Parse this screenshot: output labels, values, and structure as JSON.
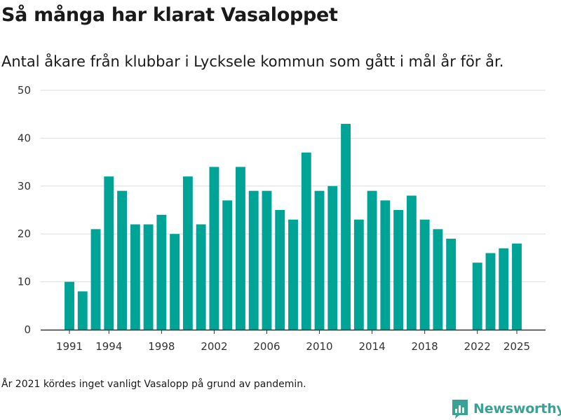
{
  "title": "Så många har klarat Vasaloppet",
  "subtitle": "Antal åkare från klubbar i Lycksele kommun som gått i mål år för år.",
  "footnote": "År 2021 kördes inget vanligt Vasalopp på grund av pandemin.",
  "brand": {
    "name": "Newsworthy",
    "color": "#3aa195",
    "icon": "bar-chart-speech-bubble-icon"
  },
  "colors": {
    "bar": "#00a497",
    "grid": "#dddddd",
    "axis": "#333333"
  },
  "chart_data": {
    "type": "bar",
    "title": "Så många har klarat Vasaloppet",
    "subtitle": "Antal åkare från klubbar i Lycksele kommun som gått i mål år för år.",
    "xlabel": "",
    "ylabel": "",
    "ylim": [
      0,
      50
    ],
    "xlim": [
      1991,
      2025
    ],
    "grid": "horizontal",
    "yticks": [
      0,
      10,
      20,
      30,
      40,
      50
    ],
    "xticks": [
      1991,
      1994,
      1998,
      2002,
      2006,
      2010,
      2014,
      2018,
      2022,
      2025
    ],
    "categories": [
      1991,
      1992,
      1993,
      1994,
      1995,
      1996,
      1997,
      1998,
      1999,
      2000,
      2001,
      2002,
      2003,
      2004,
      2005,
      2006,
      2007,
      2008,
      2009,
      2010,
      2011,
      2012,
      2013,
      2014,
      2015,
      2016,
      2017,
      2018,
      2019,
      2020,
      2022,
      2023,
      2024,
      2025
    ],
    "values": [
      10,
      8,
      21,
      32,
      29,
      22,
      22,
      24,
      20,
      32,
      22,
      34,
      27,
      34,
      29,
      29,
      25,
      23,
      37,
      29,
      30,
      43,
      23,
      29,
      27,
      25,
      28,
      23,
      21,
      19,
      14,
      16,
      17,
      18
    ]
  }
}
